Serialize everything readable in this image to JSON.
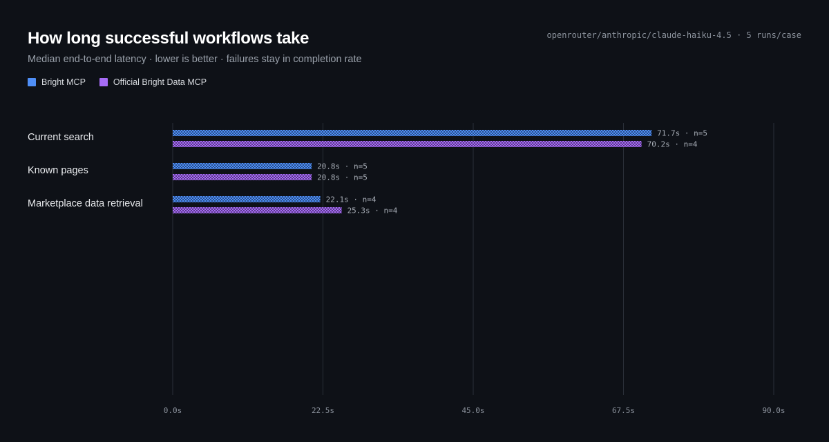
{
  "header": {
    "title": "How long successful workflows take",
    "subtitle": "Median end-to-end latency · lower is better · failures stay in completion rate",
    "meta": "openrouter/anthropic/claude-haiku-4.5 · 5 runs/case"
  },
  "legend": [
    {
      "label": "Bright MCP",
      "color": "#4f8ff7"
    },
    {
      "label": "Official Bright Data MCP",
      "color": "#a66cf5"
    }
  ],
  "chart_data": {
    "type": "bar",
    "orientation": "horizontal",
    "categories": [
      "Current search",
      "Known pages",
      "Marketplace data retrieval"
    ],
    "series": [
      {
        "name": "Bright MCP",
        "color": "#4f8ff7",
        "values": [
          71.7,
          20.8,
          22.1
        ],
        "n": [
          5,
          5,
          4
        ]
      },
      {
        "name": "Official Bright Data MCP",
        "color": "#a66cf5",
        "values": [
          70.2,
          20.8,
          25.3
        ],
        "n": [
          4,
          5,
          4
        ]
      }
    ],
    "xlim": [
      0,
      90
    ],
    "xticks": [
      "0.0s",
      "22.5s",
      "45.0s",
      "67.5s",
      "90.0s"
    ],
    "xtick_values": [
      0,
      22.5,
      45,
      67.5,
      90
    ],
    "data_labels": [
      [
        "71.7s · n=5",
        "20.8s · n=5",
        "22.1s · n=4"
      ],
      [
        "70.2s · n=4",
        "20.8s · n=5",
        "25.3s · n=4"
      ]
    ],
    "grid": true,
    "legend_position": "top-left"
  }
}
